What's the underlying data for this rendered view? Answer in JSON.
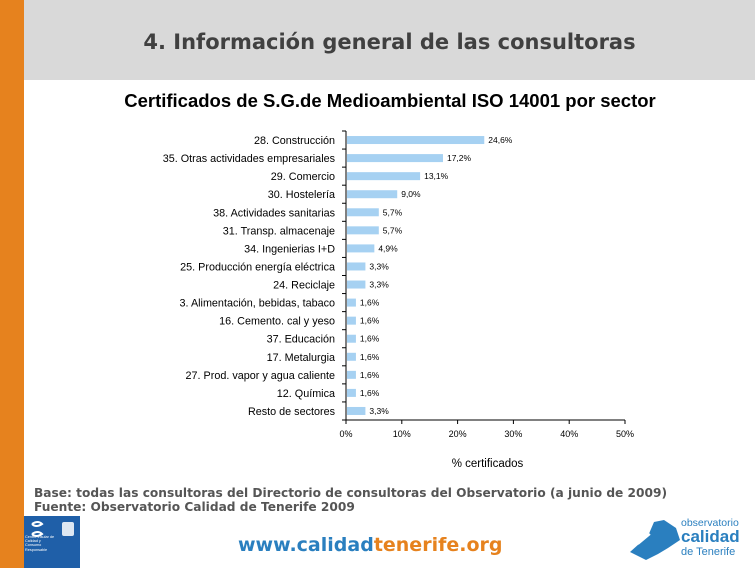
{
  "header": {
    "title": "4. Información general de las consultoras"
  },
  "chart_data": {
    "type": "bar",
    "orientation": "horizontal",
    "title": "Certificados de S.G.de Medioambiental ISO 14001 por sector",
    "xlabel": "% certificados",
    "categories": [
      "28. Construcción",
      "35. Otras actividades empresariales",
      "29. Comercio",
      "30. Hostelería",
      "38. Actividades sanitarias",
      "31. Transp. almacenaje",
      "34. Ingenierias I+D",
      "25. Producción energía eléctrica",
      "24. Reciclaje",
      "3. Alimentación, bebidas, tabaco",
      "16. Cemento. cal y yeso",
      "37. Educación",
      "17. Metalurgia",
      "27. Prod. vapor y agua caliente",
      "12. Química",
      "Resto de sectores"
    ],
    "values": [
      24.6,
      17.2,
      13.1,
      9.0,
      5.7,
      5.7,
      4.9,
      3.3,
      3.3,
      1.6,
      1.6,
      1.6,
      1.6,
      1.6,
      1.6,
      3.3
    ],
    "value_labels": [
      "24,6%",
      "17,2%",
      "13,1%",
      "9,0%",
      "5,7%",
      "5,7%",
      "4,9%",
      "3,3%",
      "3,3%",
      "1,6%",
      "1,6%",
      "1,6%",
      "1,6%",
      "1,6%",
      "1,6%",
      "3,3%"
    ],
    "xlim": [
      0,
      50
    ],
    "xticks": [
      0,
      10,
      20,
      30,
      40,
      50
    ],
    "xtick_labels": [
      "0%",
      "10%",
      "20%",
      "30%",
      "40%",
      "50%"
    ],
    "grid": false,
    "bar_color": "#a6d1f2"
  },
  "footer": {
    "base_note": "Base: todas las consultoras del Directorio de consultoras del Observatorio (a junio de 2009)",
    "source_note": "Fuente: Observatorio Calidad de Tenerife 2009",
    "url_prefix": "www.",
    "url_middle": "calidad",
    "url_suffix": "tenerife.org",
    "url_prefix_color": "#2a7fbf",
    "url_accent_color": "#e6821e"
  },
  "logos": {
    "left_logo_text": "Centro Insular de Calidad y Consumo Responsable",
    "right_logo_line1": "observatorio",
    "right_logo_line2": "calidad",
    "right_logo_line3": "de Tenerife"
  }
}
